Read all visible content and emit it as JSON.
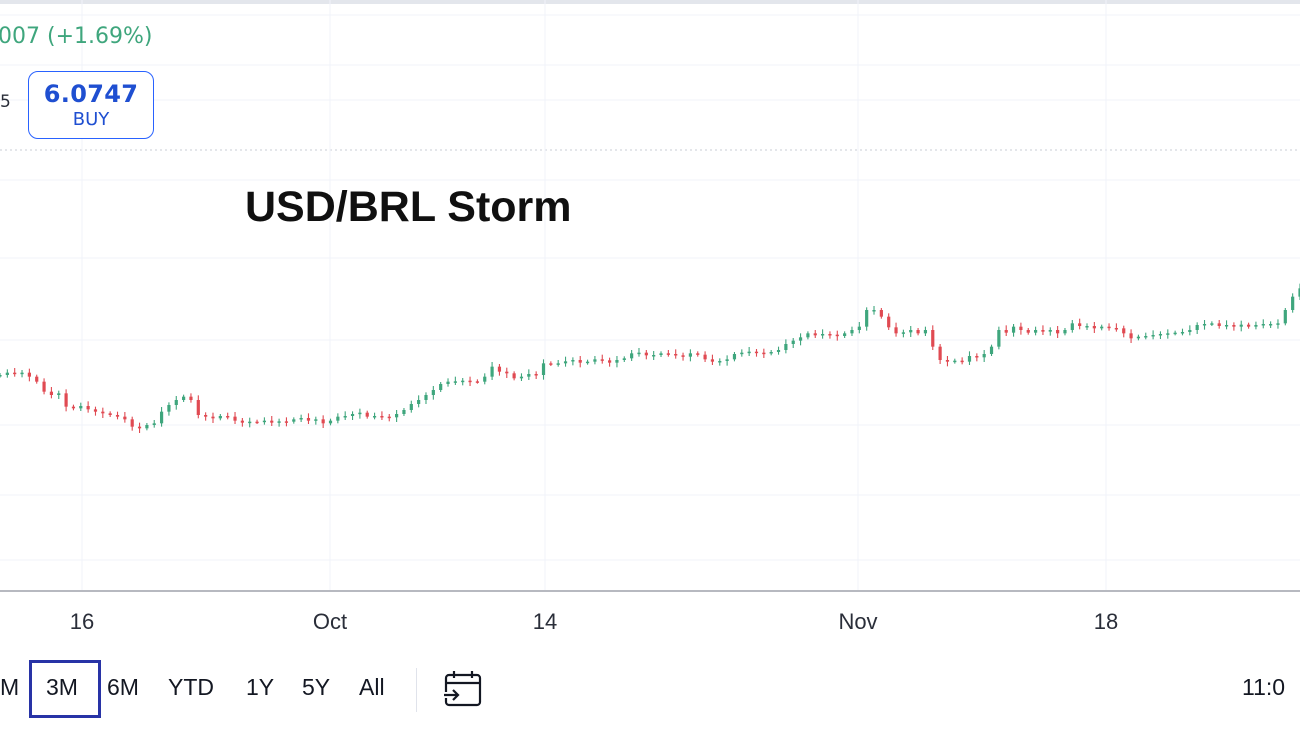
{
  "header": {
    "change_text": "007 (+1.69%)",
    "side_digit": "5",
    "buy_price": "6.0747",
    "buy_label": "BUY"
  },
  "range_selector": {
    "buttons": [
      "M",
      "3M",
      "6M",
      "YTD",
      "1Y",
      "5Y",
      "All"
    ],
    "active": "3M",
    "calendar_icon": "calendar-goto-icon",
    "time_text": "11:0"
  },
  "colors": {
    "up": "#3fa67d",
    "down": "#e04a52",
    "accent": "#2962ff",
    "active_box": "#2833a6"
  },
  "chart_data": {
    "type": "candlestick",
    "title": "USD/BRL Storm",
    "x_ticks": [
      "16",
      "Oct",
      "14",
      "Nov",
      "18"
    ],
    "y_range": [
      5.4,
      6.12
    ],
    "grid": true,
    "close": [
      5.565,
      5.572,
      5.57,
      5.572,
      5.56,
      5.545,
      5.515,
      5.505,
      5.51,
      5.47,
      5.465,
      5.472,
      5.462,
      5.455,
      5.45,
      5.445,
      5.44,
      5.432,
      5.41,
      5.405,
      5.415,
      5.42,
      5.455,
      5.475,
      5.49,
      5.5,
      5.49,
      5.445,
      5.44,
      5.435,
      5.442,
      5.44,
      5.428,
      5.422,
      5.425,
      5.424,
      5.428,
      5.422,
      5.426,
      5.425,
      5.432,
      5.436,
      5.428,
      5.432,
      5.42,
      5.428,
      5.44,
      5.442,
      5.448,
      5.452,
      5.44,
      5.442,
      5.44,
      5.438,
      5.448,
      5.46,
      5.478,
      5.49,
      5.505,
      5.52,
      5.538,
      5.545,
      5.546,
      5.548,
      5.546,
      5.545,
      5.56,
      5.59,
      5.575,
      5.57,
      5.555,
      5.56,
      5.568,
      5.565,
      5.6,
      5.598,
      5.6,
      5.606,
      5.61,
      5.602,
      5.605,
      5.612,
      5.609,
      5.602,
      5.61,
      5.615,
      5.63,
      5.632,
      5.624,
      5.625,
      5.63,
      5.628,
      5.624,
      5.62,
      5.63,
      5.626,
      5.612,
      5.605,
      5.607,
      5.612,
      5.628,
      5.632,
      5.635,
      5.632,
      5.63,
      5.634,
      5.64,
      5.658,
      5.668,
      5.678,
      5.69,
      5.684,
      5.688,
      5.686,
      5.682,
      5.69,
      5.7,
      5.71,
      5.76,
      5.76,
      5.74,
      5.708,
      5.69,
      5.693,
      5.7,
      5.69,
      5.7,
      5.65,
      5.61,
      5.605,
      5.608,
      5.605,
      5.622,
      5.618,
      5.628,
      5.65,
      5.7,
      5.692,
      5.71,
      5.7,
      5.692,
      5.7,
      5.695,
      5.7,
      5.69,
      5.7,
      5.72,
      5.712,
      5.712,
      5.705,
      5.71,
      5.706,
      5.705,
      5.69,
      5.675,
      5.68,
      5.682,
      5.685,
      5.688,
      5.69,
      5.692,
      5.694,
      5.7,
      5.715,
      5.718,
      5.72,
      5.712,
      5.715,
      5.71,
      5.716,
      5.71,
      5.715,
      5.718,
      5.718,
      5.72,
      5.76,
      5.8,
      5.825
    ]
  }
}
